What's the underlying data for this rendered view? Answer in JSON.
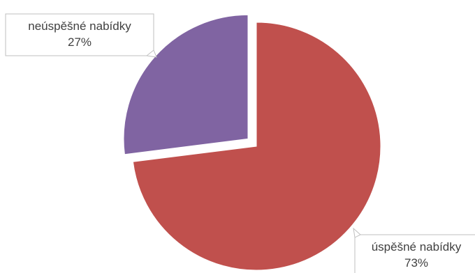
{
  "chart_data": {
    "type": "pie",
    "title": "",
    "legend": "none",
    "slices": [
      {
        "category": "úspěšné nabídky",
        "value": 73,
        "percent_label": "73%",
        "color": "#c0504d",
        "exploded": false
      },
      {
        "category": "neúspěšné nabídky",
        "value": 27,
        "percent_label": "27%",
        "color": "#8064a2",
        "exploded": true
      }
    ]
  }
}
